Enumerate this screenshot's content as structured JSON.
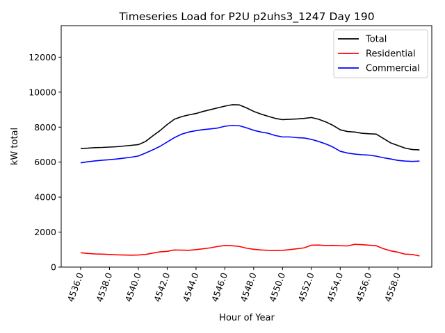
{
  "chart_data": {
    "type": "line",
    "title": "Timeseries Load for P2U p2uhs3_1247  Day 190",
    "xlabel": "Hour of Year",
    "ylabel": "kW total",
    "xlim": [
      4534.65,
      4560.35
    ],
    "ylim": [
      0,
      13800
    ],
    "x_ticks": [
      4536,
      4538,
      4540,
      4542,
      4544,
      4546,
      4548,
      4550,
      4552,
      4554,
      4556,
      4558
    ],
    "x_tick_labels": [
      "4536.0",
      "4538.0",
      "4540.0",
      "4542.0",
      "4544.0",
      "4546.0",
      "4548.0",
      "4550.0",
      "4552.0",
      "4554.0",
      "4556.0",
      "4558.0"
    ],
    "y_ticks": [
      0,
      2000,
      4000,
      6000,
      8000,
      10000,
      12000
    ],
    "y_tick_labels": [
      "0",
      "2000",
      "4000",
      "6000",
      "8000",
      "10000",
      "12000"
    ],
    "legend_position": "top-right",
    "x": [
      4536.0,
      4536.5,
      4537.0,
      4537.5,
      4538.0,
      4538.5,
      4539.0,
      4539.5,
      4540.0,
      4540.5,
      4541.0,
      4541.5,
      4542.0,
      4542.5,
      4543.0,
      4543.5,
      4544.0,
      4544.5,
      4545.0,
      4545.5,
      4546.0,
      4546.5,
      4547.0,
      4547.5,
      4548.0,
      4548.5,
      4549.0,
      4549.5,
      4550.0,
      4550.5,
      4551.0,
      4551.5,
      4552.0,
      4552.5,
      4553.0,
      4553.5,
      4554.0,
      4554.5,
      4555.0,
      4555.5,
      4556.0,
      4556.5,
      4557.0,
      4557.5,
      4558.0,
      4558.5,
      4559.0,
      4559.5
    ],
    "series": [
      {
        "name": "Total",
        "color": "#000000",
        "values": [
          6780,
          6800,
          6830,
          6840,
          6860,
          6880,
          6920,
          6960,
          7000,
          7180,
          7500,
          7800,
          8150,
          8450,
          8600,
          8700,
          8780,
          8900,
          9000,
          9100,
          9200,
          9280,
          9270,
          9100,
          8900,
          8750,
          8620,
          8500,
          8430,
          8450,
          8470,
          8500,
          8550,
          8450,
          8300,
          8100,
          7850,
          7750,
          7720,
          7650,
          7620,
          7600,
          7350,
          7100,
          6950,
          6800,
          6720,
          6700
        ]
      },
      {
        "name": "Residential",
        "color": "#ff0000",
        "values": [
          820,
          780,
          750,
          740,
          720,
          700,
          690,
          680,
          690,
          720,
          800,
          870,
          900,
          980,
          970,
          960,
          1000,
          1050,
          1100,
          1180,
          1230,
          1220,
          1180,
          1080,
          1020,
          980,
          960,
          950,
          960,
          1000,
          1050,
          1100,
          1250,
          1260,
          1230,
          1240,
          1220,
          1210,
          1300,
          1280,
          1250,
          1220,
          1050,
          930,
          850,
          740,
          720,
          640
        ]
      },
      {
        "name": "Commercial",
        "color": "#0000ff",
        "values": [
          5960,
          6020,
          6070,
          6110,
          6140,
          6180,
          6230,
          6280,
          6350,
          6520,
          6700,
          6900,
          7150,
          7400,
          7600,
          7720,
          7800,
          7860,
          7900,
          7950,
          8050,
          8100,
          8080,
          7960,
          7820,
          7720,
          7650,
          7520,
          7440,
          7440,
          7400,
          7380,
          7300,
          7180,
          7040,
          6860,
          6620,
          6520,
          6460,
          6420,
          6400,
          6340,
          6250,
          6180,
          6100,
          6060,
          6040,
          6060
        ]
      }
    ]
  }
}
